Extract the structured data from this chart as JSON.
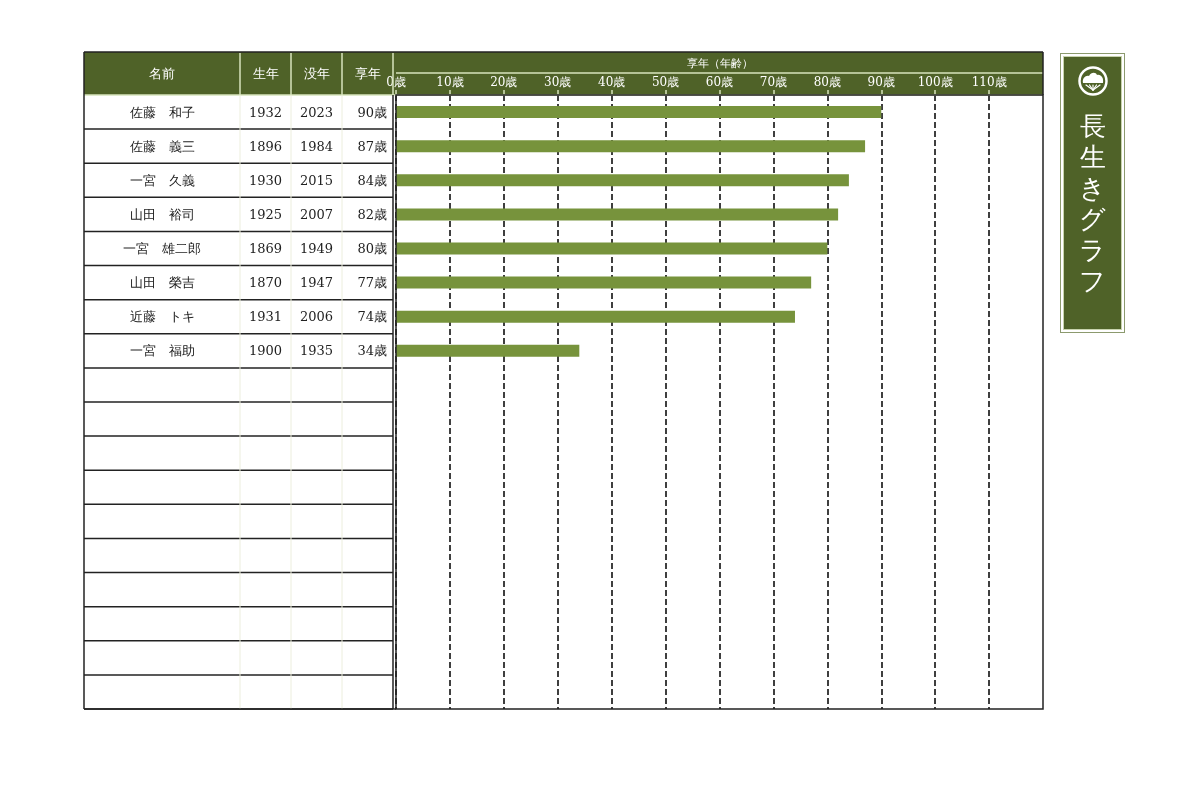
{
  "chart_data": {
    "type": "bar",
    "orientation": "horizontal",
    "title": "長生きグラフ",
    "x2label": "享年（年齢）",
    "ylabel": "名前",
    "categories": [
      "佐藤　和子",
      "佐藤　義三",
      "一宮　久義",
      "山田　裕司",
      "一宮　雄二郎",
      "山田　榮吉",
      "近藤　トキ",
      "一宮　福助",
      null,
      null,
      null,
      null,
      null,
      null,
      null,
      null,
      null,
      null
    ],
    "series": [
      {
        "color": "#77933c",
        "axis": "x2",
        "values": [
          90,
          87,
          84,
          82,
          80,
          77,
          74,
          34,
          null,
          null,
          null,
          null,
          null,
          null,
          null,
          null,
          null,
          null
        ],
        "value_labels": [
          "90歳",
          "87歳",
          "84歳",
          "82歳",
          "80歳",
          "77歳",
          "74歳",
          "34歳",
          null,
          null,
          null,
          null,
          null,
          null,
          null,
          null,
          null,
          null
        ]
      }
    ],
    "x2lim": [
      0,
      120
    ],
    "x2ticks": [
      {
        "value": 0,
        "label": "0歳"
      },
      {
        "value": 10,
        "label": "10歳"
      },
      {
        "value": 20,
        "label": "20歳"
      },
      {
        "value": 30,
        "label": "30歳"
      },
      {
        "value": 40,
        "label": "40歳"
      },
      {
        "value": 50,
        "label": "50歳"
      },
      {
        "value": 60,
        "label": "60歳"
      },
      {
        "value": 70,
        "label": "70歳"
      },
      {
        "value": 80,
        "label": "80歳"
      },
      {
        "value": 90,
        "label": "90歳"
      },
      {
        "value": 100,
        "label": "100歳"
      },
      {
        "value": 110,
        "label": "110歳"
      }
    ],
    "grid": "x",
    "annotations": [
      "生年",
      "没年",
      "享年",
      "1932",
      "2023",
      "1896",
      "1984",
      "1930",
      "2015",
      "1925",
      "2007",
      "1869",
      "1949",
      "1870",
      "1947",
      "1931",
      "2006",
      "1900",
      "1935"
    ]
  }
}
